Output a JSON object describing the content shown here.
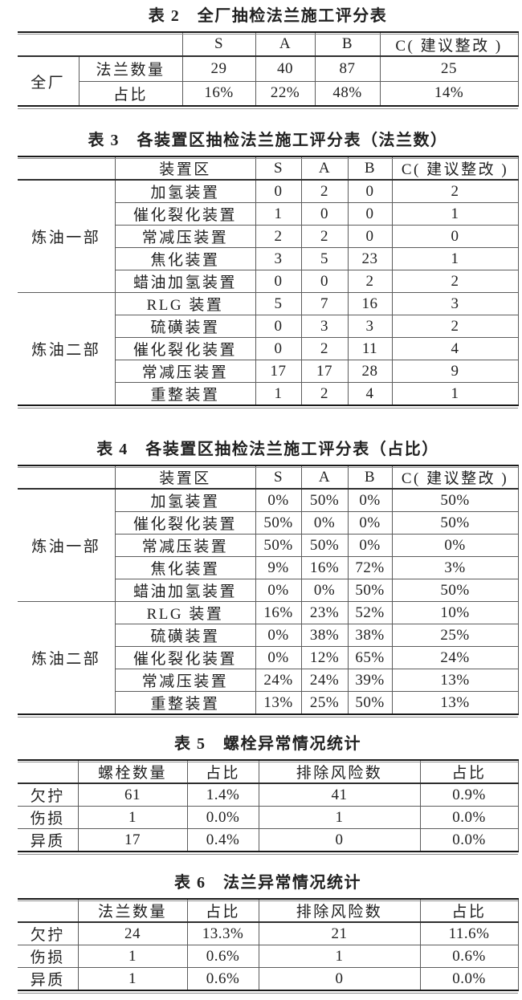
{
  "colors": {
    "background": "#ffffff",
    "text": "#212121",
    "rule_heavy": "#1a1a1a",
    "rule_light": "#5c5c5c",
    "rule_echo": "#8f8f8f"
  },
  "tables": [
    {
      "title": "表 2　全厂抽检法兰施工评分表",
      "header": [
        "",
        "S",
        "A",
        "B",
        "C( 建议整改 )"
      ],
      "groups": [
        {
          "label": "全厂",
          "rows": [
            [
              "法兰数量",
              "29",
              "40",
              "87",
              "25"
            ],
            [
              "占比",
              "16%",
              "22%",
              "48%",
              "14%"
            ]
          ]
        }
      ]
    },
    {
      "title": "表 3　各装置区抽检法兰施工评分表（法兰数）",
      "header": [
        "",
        "装置区",
        "S",
        "A",
        "B",
        "C( 建议整改 )"
      ],
      "groups": [
        {
          "label": "炼油一部",
          "rows": [
            [
              "加氢装置",
              "0",
              "2",
              "0",
              "2"
            ],
            [
              "催化裂化装置",
              "1",
              "0",
              "0",
              "1"
            ],
            [
              "常减压装置",
              "2",
              "2",
              "0",
              "0"
            ],
            [
              "焦化装置",
              "3",
              "5",
              "23",
              "1"
            ],
            [
              "蜡油加氢装置",
              "0",
              "0",
              "2",
              "2"
            ]
          ]
        },
        {
          "label": "炼油二部",
          "rows": [
            [
              "RLG 装置",
              "5",
              "7",
              "16",
              "3"
            ],
            [
              "硫磺装置",
              "0",
              "3",
              "3",
              "2"
            ],
            [
              "催化裂化装置",
              "0",
              "2",
              "11",
              "4"
            ],
            [
              "常减压装置",
              "17",
              "17",
              "28",
              "9"
            ],
            [
              "重整装置",
              "1",
              "2",
              "4",
              "1"
            ]
          ]
        }
      ]
    },
    {
      "title": "表 4　各装置区抽检法兰施工评分表（占比）",
      "header": [
        "",
        "装置区",
        "S",
        "A",
        "B",
        "C( 建议整改 )"
      ],
      "groups": [
        {
          "label": "炼油一部",
          "rows": [
            [
              "加氢装置",
              "0%",
              "50%",
              "0%",
              "50%"
            ],
            [
              "催化裂化装置",
              "50%",
              "0%",
              "0%",
              "50%"
            ],
            [
              "常减压装置",
              "50%",
              "50%",
              "0%",
              "0%"
            ],
            [
              "焦化装置",
              "9%",
              "16%",
              "72%",
              "3%"
            ],
            [
              "蜡油加氢装置",
              "0%",
              "0%",
              "50%",
              "50%"
            ]
          ]
        },
        {
          "label": "炼油二部",
          "rows": [
            [
              "RLG 装置",
              "16%",
              "23%",
              "52%",
              "10%"
            ],
            [
              "硫磺装置",
              "0%",
              "38%",
              "38%",
              "25%"
            ],
            [
              "催化裂化装置",
              "0%",
              "12%",
              "65%",
              "24%"
            ],
            [
              "常减压装置",
              "24%",
              "24%",
              "39%",
              "13%"
            ],
            [
              "重整装置",
              "13%",
              "25%",
              "50%",
              "13%"
            ]
          ]
        }
      ]
    },
    {
      "title": "表 5　螺栓异常情况统计",
      "header": [
        "",
        "螺栓数量",
        "占比",
        "排除风险数",
        "占比"
      ],
      "groups": [
        {
          "label": "欠拧",
          "rows": [
            [
              "61",
              "1.4%",
              "41",
              "0.9%"
            ]
          ]
        },
        {
          "label": "伤损",
          "rows": [
            [
              "1",
              "0.0%",
              "1",
              "0.0%"
            ]
          ]
        },
        {
          "label": "异质",
          "rows": [
            [
              "17",
              "0.4%",
              "0",
              "0.0%"
            ]
          ]
        }
      ]
    },
    {
      "title": "表 6　法兰异常情况统计",
      "header": [
        "",
        "法兰数量",
        "占比",
        "排除风险数",
        "占比"
      ],
      "groups": [
        {
          "label": "欠拧",
          "rows": [
            [
              "24",
              "13.3%",
              "21",
              "11.6%"
            ]
          ]
        },
        {
          "label": "伤损",
          "rows": [
            [
              "1",
              "0.6%",
              "1",
              "0.6%"
            ]
          ]
        },
        {
          "label": "异质",
          "rows": [
            [
              "1",
              "0.6%",
              "0",
              "0.0%"
            ]
          ]
        }
      ]
    }
  ]
}
